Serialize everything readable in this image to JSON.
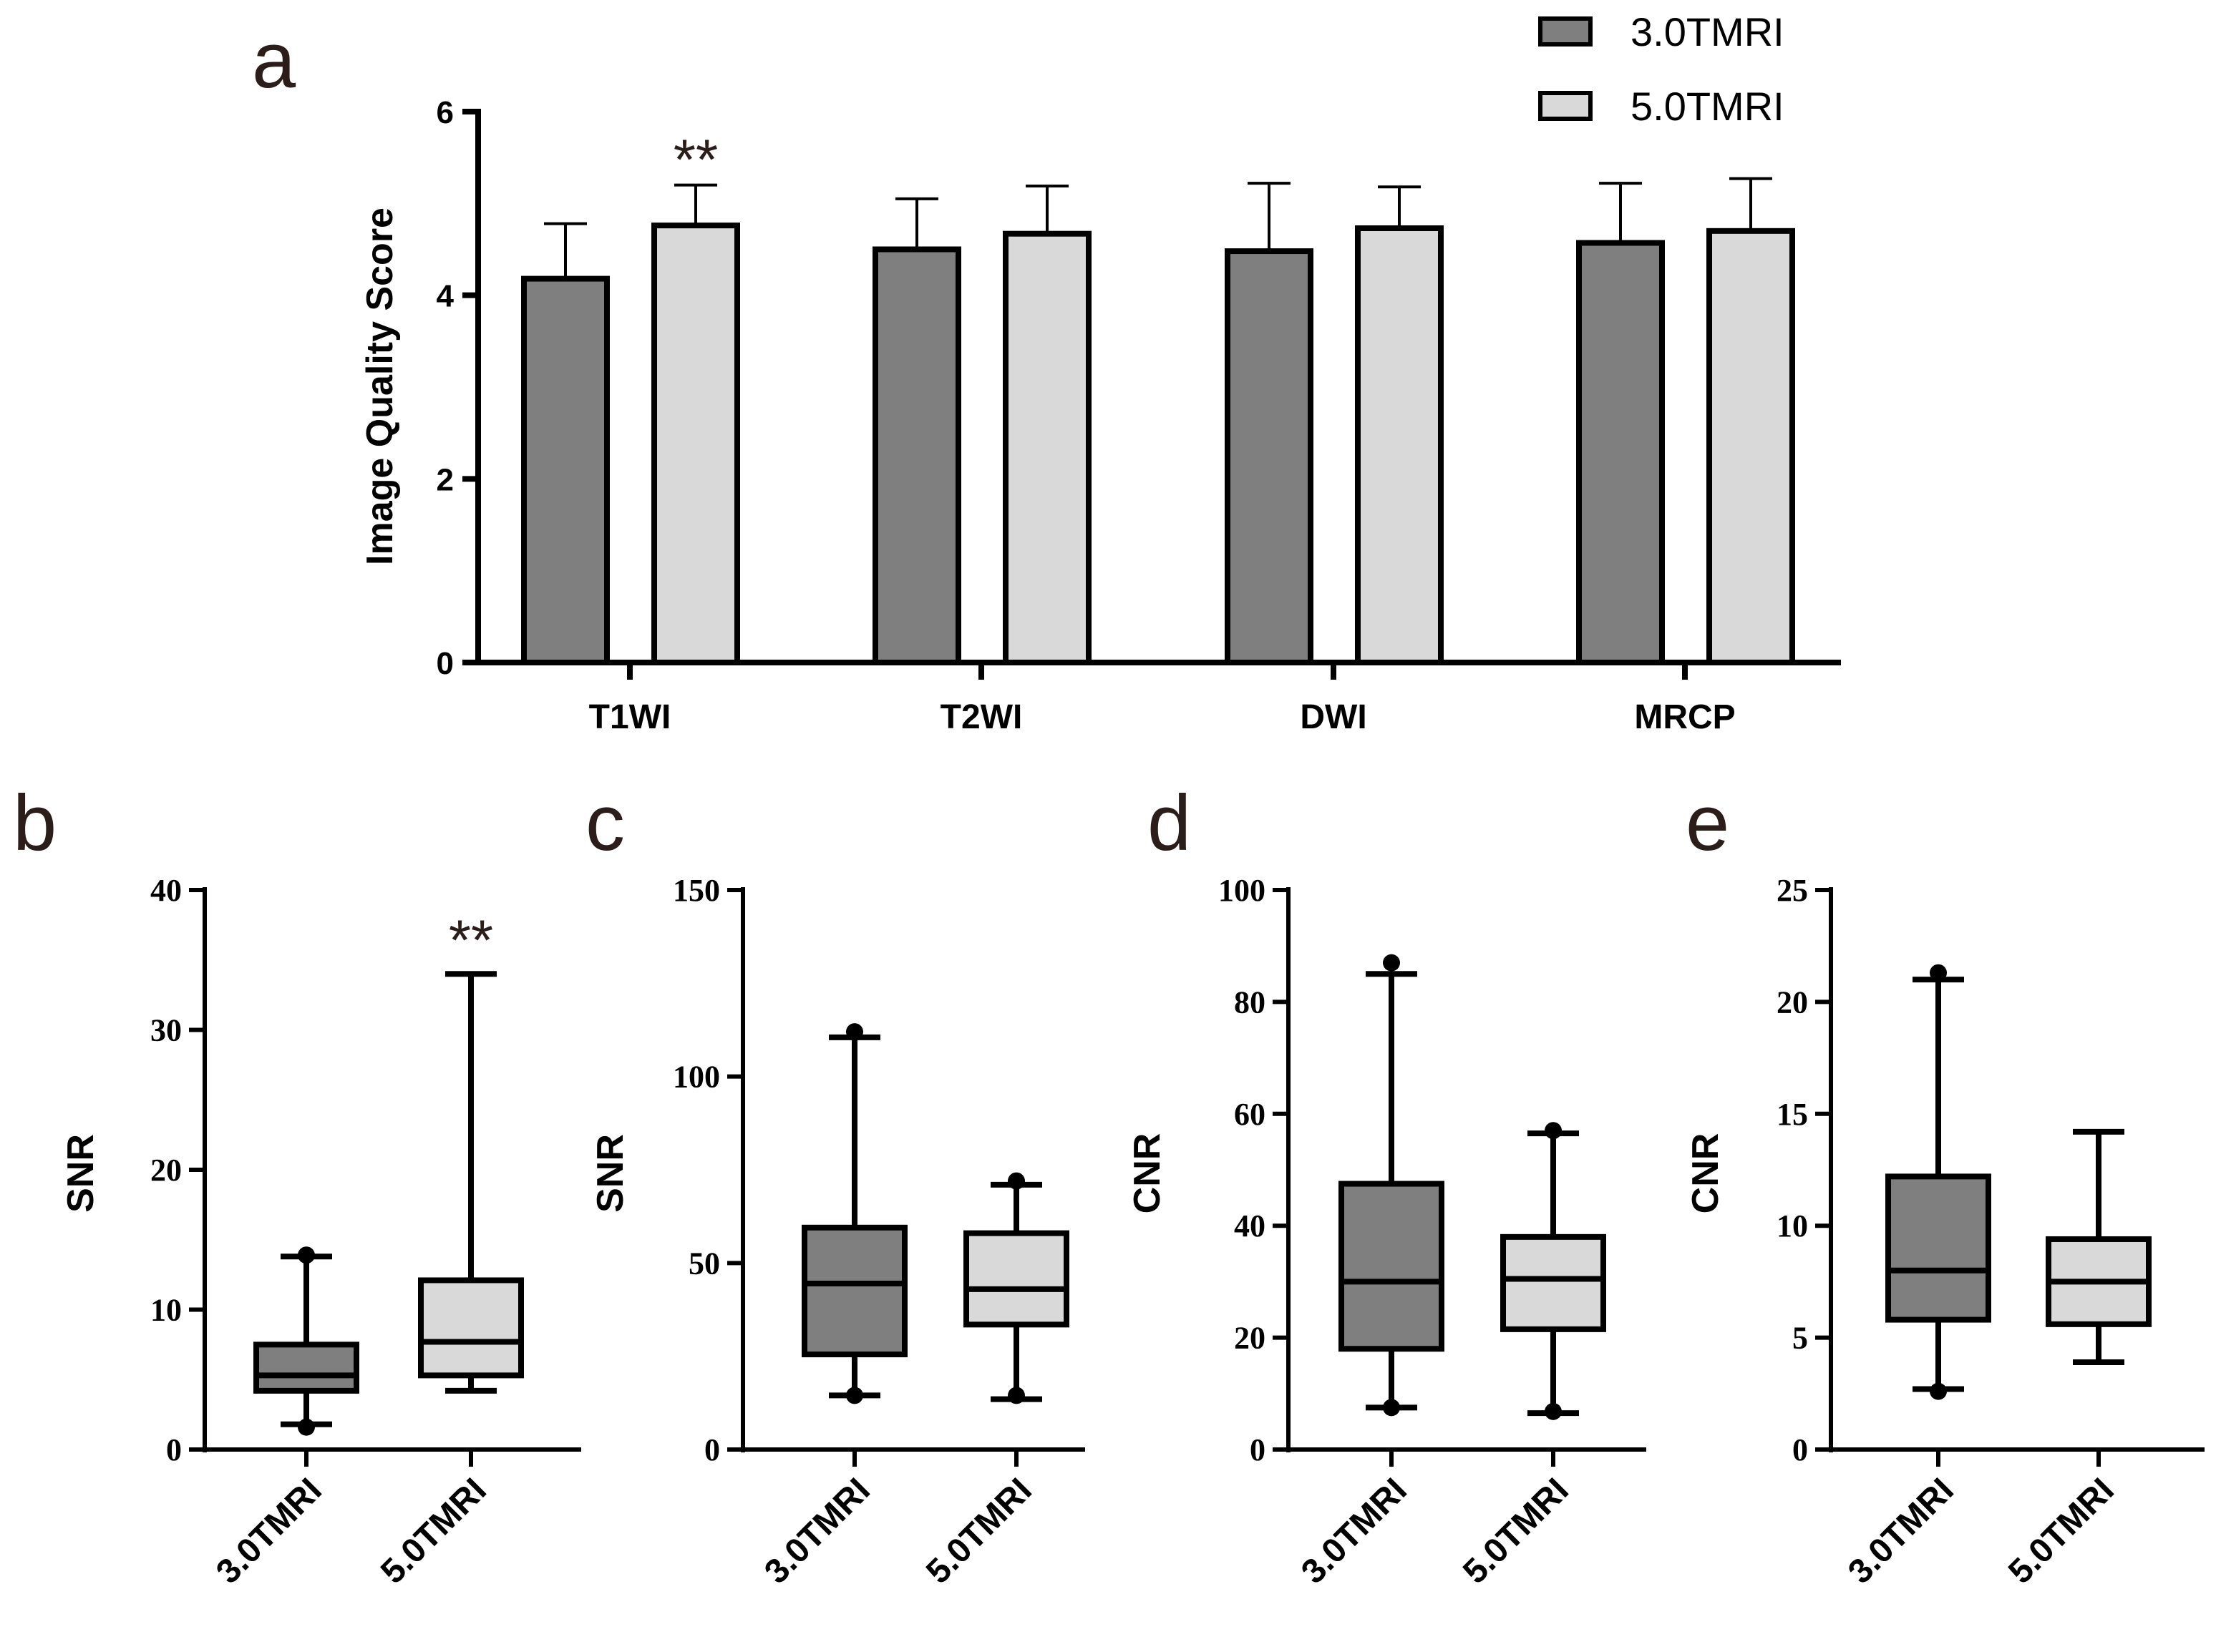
{
  "colors": {
    "series1": "#7f7f7f",
    "series2": "#d9d9d9",
    "stroke": "#000000"
  },
  "panel_a": {
    "letter": "a",
    "legend": [
      "3.0TMRI",
      "5.0TMRI"
    ],
    "significance": "**"
  },
  "panel_b": {
    "letter": "b",
    "significance": "**"
  },
  "panel_c": {
    "letter": "c"
  },
  "panel_d": {
    "letter": "d"
  },
  "panel_e": {
    "letter": "e"
  },
  "chart_data": [
    {
      "type": "bar",
      "title": "",
      "ylabel": "Image Quality Score",
      "xlabel": "",
      "ylim": [
        0,
        6
      ],
      "yticks": [
        0,
        2,
        4,
        6
      ],
      "categories": [
        "T1WI",
        "T2WI",
        "DWI",
        "MRCP"
      ],
      "series": [
        {
          "name": "3.0TMRI",
          "values": [
            4.18,
            4.5,
            4.48,
            4.57
          ],
          "errors": [
            0.6,
            0.55,
            0.74,
            0.65
          ]
        },
        {
          "name": "5.0TMRI",
          "values": [
            4.76,
            4.67,
            4.73,
            4.7
          ],
          "errors": [
            0.44,
            0.52,
            0.45,
            0.57
          ]
        }
      ],
      "annotations": [
        {
          "category": "T1WI",
          "series": "5.0TMRI",
          "text": "**"
        }
      ],
      "legend_position": "top-right"
    },
    {
      "type": "box",
      "ylabel": "SNR",
      "ylim": [
        0,
        40
      ],
      "yticks": [
        0,
        10,
        20,
        30,
        40
      ],
      "categories": [
        "3.0TMRI",
        "5.0TMRI"
      ],
      "boxes": [
        {
          "min": 1.8,
          "q1": 4.2,
          "median": 5.3,
          "q3": 7.5,
          "max": 13.8,
          "outliers": [
            1.6,
            13.9
          ]
        },
        {
          "min": 4.2,
          "q1": 5.3,
          "median": 7.7,
          "q3": 12.1,
          "max": 34.0,
          "outliers": []
        }
      ],
      "annotations": [
        {
          "category": "5.0TMRI",
          "text": "**"
        }
      ]
    },
    {
      "type": "box",
      "ylabel": "SNR",
      "ylim": [
        0,
        150
      ],
      "yticks": [
        0,
        50,
        100,
        150
      ],
      "categories": [
        "3.0TMRI",
        "5.0TMRI"
      ],
      "boxes": [
        {
          "min": 14.5,
          "q1": 25.5,
          "median": 44.5,
          "q3": 59.5,
          "max": 110.5,
          "outliers": [
            14.5,
            112
          ]
        },
        {
          "min": 13.5,
          "q1": 33.5,
          "median": 43.0,
          "q3": 58.0,
          "max": 71.0,
          "outliers": [
            14.5,
            72
          ]
        }
      ]
    },
    {
      "type": "box",
      "ylabel": "CNR",
      "ylim": [
        0,
        100
      ],
      "yticks": [
        0,
        20,
        40,
        60,
        80,
        100
      ],
      "categories": [
        "3.0TMRI",
        "5.0TMRI"
      ],
      "boxes": [
        {
          "min": 7.5,
          "q1": 18.0,
          "median": 30.0,
          "q3": 47.5,
          "max": 85.0,
          "outliers": [
            7.5,
            87
          ]
        },
        {
          "min": 6.5,
          "q1": 21.5,
          "median": 30.5,
          "q3": 38.0,
          "max": 56.5,
          "outliers": [
            6.8,
            57
          ]
        }
      ]
    },
    {
      "type": "box",
      "ylabel": "CNR",
      "ylim": [
        0,
        25
      ],
      "yticks": [
        0,
        5,
        10,
        15,
        20,
        25
      ],
      "categories": [
        "3.0TMRI",
        "5.0TMRI"
      ],
      "boxes": [
        {
          "min": 2.7,
          "q1": 5.8,
          "median": 8.0,
          "q3": 12.2,
          "max": 21.0,
          "outliers": [
            2.6,
            21.3
          ]
        },
        {
          "min": 3.9,
          "q1": 5.6,
          "median": 7.5,
          "q3": 9.4,
          "max": 14.2,
          "outliers": []
        }
      ]
    }
  ]
}
